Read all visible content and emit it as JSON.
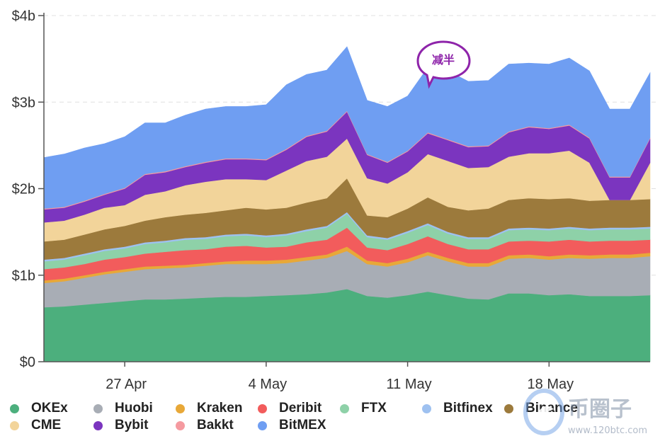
{
  "chart_data": {
    "type": "area",
    "stacked": true,
    "x": [
      "2020-04-23",
      "2020-04-24",
      "2020-04-25",
      "2020-04-26",
      "2020-04-27",
      "2020-04-28",
      "2020-04-29",
      "2020-04-30",
      "2020-05-01",
      "2020-05-02",
      "2020-05-03",
      "2020-05-04",
      "2020-05-05",
      "2020-05-06",
      "2020-05-07",
      "2020-05-08",
      "2020-05-09",
      "2020-05-10",
      "2020-05-11",
      "2020-05-12",
      "2020-05-13",
      "2020-05-14",
      "2020-05-15",
      "2020-05-16",
      "2020-05-17",
      "2020-05-18",
      "2020-05-19",
      "2020-05-20",
      "2020-05-21",
      "2020-05-22",
      "2020-05-23"
    ],
    "x_tick_labels": [
      {
        "date": "2020-04-27",
        "label": "27 Apr"
      },
      {
        "date": "2020-05-04",
        "label": "4 May"
      },
      {
        "date": "2020-05-11",
        "label": "11 May"
      },
      {
        "date": "2020-05-18",
        "label": "18 May"
      }
    ],
    "y_ticks": [
      "$0",
      "$1b",
      "$2b",
      "$3b",
      "$4b"
    ],
    "ylim": [
      0,
      4
    ],
    "y_unit": "billion USD",
    "grid": "horizontal dashed",
    "series": [
      {
        "name": "OKEx",
        "color": "#4caf7d",
        "values": [
          0.63,
          0.64,
          0.66,
          0.68,
          0.7,
          0.72,
          0.72,
          0.73,
          0.74,
          0.75,
          0.75,
          0.76,
          0.77,
          0.78,
          0.8,
          0.84,
          0.76,
          0.74,
          0.77,
          0.81,
          0.77,
          0.73,
          0.72,
          0.79,
          0.79,
          0.77,
          0.78,
          0.76,
          0.76,
          0.76,
          0.77
        ]
      },
      {
        "name": "Huobi",
        "color": "#a8adb5",
        "values": [
          0.28,
          0.29,
          0.31,
          0.33,
          0.34,
          0.35,
          0.36,
          0.36,
          0.37,
          0.38,
          0.38,
          0.37,
          0.37,
          0.39,
          0.4,
          0.44,
          0.37,
          0.36,
          0.38,
          0.42,
          0.39,
          0.37,
          0.38,
          0.4,
          0.41,
          0.41,
          0.42,
          0.43,
          0.44,
          0.44,
          0.45
        ]
      },
      {
        "name": "Kraken",
        "color": "#e8a838",
        "values": [
          0.03,
          0.03,
          0.03,
          0.03,
          0.03,
          0.03,
          0.03,
          0.03,
          0.03,
          0.03,
          0.04,
          0.04,
          0.04,
          0.04,
          0.04,
          0.05,
          0.04,
          0.04,
          0.04,
          0.04,
          0.04,
          0.04,
          0.04,
          0.04,
          0.04,
          0.04,
          0.04,
          0.04,
          0.04,
          0.04,
          0.04
        ]
      },
      {
        "name": "Deribit",
        "color": "#f25c5c",
        "values": [
          0.13,
          0.13,
          0.13,
          0.14,
          0.14,
          0.15,
          0.16,
          0.17,
          0.16,
          0.17,
          0.17,
          0.15,
          0.15,
          0.17,
          0.17,
          0.22,
          0.15,
          0.15,
          0.17,
          0.18,
          0.16,
          0.16,
          0.16,
          0.16,
          0.16,
          0.17,
          0.17,
          0.16,
          0.16,
          0.16,
          0.15
        ]
      },
      {
        "name": "FTX",
        "color": "#8ed1a8",
        "values": [
          0.09,
          0.09,
          0.1,
          0.1,
          0.1,
          0.11,
          0.11,
          0.12,
          0.12,
          0.12,
          0.12,
          0.12,
          0.13,
          0.13,
          0.14,
          0.16,
          0.12,
          0.12,
          0.13,
          0.13,
          0.12,
          0.12,
          0.12,
          0.13,
          0.13,
          0.13,
          0.13,
          0.13,
          0.13,
          0.13,
          0.13
        ]
      },
      {
        "name": "Bitfinex",
        "color": "#9ec1f0",
        "values": [
          0.02,
          0.02,
          0.02,
          0.02,
          0.02,
          0.02,
          0.02,
          0.02,
          0.02,
          0.02,
          0.02,
          0.02,
          0.02,
          0.02,
          0.02,
          0.02,
          0.02,
          0.02,
          0.02,
          0.02,
          0.02,
          0.02,
          0.02,
          0.02,
          0.02,
          0.02,
          0.02,
          0.02,
          0.02,
          0.02,
          0.02
        ]
      },
      {
        "name": "Binance",
        "color": "#9c7a3c",
        "values": [
          0.21,
          0.21,
          0.22,
          0.23,
          0.24,
          0.25,
          0.27,
          0.27,
          0.28,
          0.28,
          0.3,
          0.3,
          0.3,
          0.31,
          0.32,
          0.39,
          0.23,
          0.24,
          0.26,
          0.3,
          0.29,
          0.31,
          0.33,
          0.33,
          0.34,
          0.34,
          0.33,
          0.32,
          0.32,
          0.32,
          0.32
        ]
      },
      {
        "name": "CME",
        "color": "#f2d49a",
        "values": [
          0.22,
          0.22,
          0.23,
          0.25,
          0.24,
          0.3,
          0.3,
          0.34,
          0.36,
          0.36,
          0.33,
          0.34,
          0.43,
          0.48,
          0.48,
          0.46,
          0.43,
          0.39,
          0.42,
          0.5,
          0.53,
          0.49,
          0.48,
          0.5,
          0.52,
          0.53,
          0.55,
          0.44,
          0.0,
          0.0,
          0.42
        ]
      },
      {
        "name": "Bybit",
        "color": "#7b35bf",
        "values": [
          0.15,
          0.15,
          0.15,
          0.15,
          0.19,
          0.23,
          0.22,
          0.21,
          0.22,
          0.23,
          0.23,
          0.23,
          0.24,
          0.28,
          0.29,
          0.31,
          0.27,
          0.24,
          0.24,
          0.24,
          0.24,
          0.24,
          0.24,
          0.28,
          0.3,
          0.28,
          0.29,
          0.28,
          0.26,
          0.26,
          0.28
        ]
      },
      {
        "name": "Bakkt",
        "color": "#f59aa0",
        "values": [
          0.01,
          0.01,
          0.01,
          0.01,
          0.01,
          0.01,
          0.01,
          0.01,
          0.01,
          0.01,
          0.01,
          0.01,
          0.01,
          0.01,
          0.01,
          0.01,
          0.01,
          0.01,
          0.01,
          0.01,
          0.01,
          0.01,
          0.01,
          0.01,
          0.01,
          0.01,
          0.01,
          0.01,
          0.01,
          0.01,
          0.01
        ]
      },
      {
        "name": "BitMEX",
        "color": "#6f9ef2",
        "values": [
          0.59,
          0.61,
          0.61,
          0.58,
          0.59,
          0.59,
          0.56,
          0.59,
          0.61,
          0.6,
          0.6,
          0.63,
          0.74,
          0.71,
          0.7,
          0.74,
          0.62,
          0.64,
          0.63,
          0.75,
          0.79,
          0.75,
          0.75,
          0.78,
          0.73,
          0.74,
          0.77,
          0.77,
          0.78,
          0.78,
          0.75
        ]
      }
    ],
    "annotations": [
      {
        "text": "减半",
        "date": "2020-05-11"
      }
    ]
  },
  "legend": {
    "items": [
      {
        "label": "OKEx",
        "color": "#4caf7d"
      },
      {
        "label": "Huobi",
        "color": "#a8adb5"
      },
      {
        "label": "Kraken",
        "color": "#e8a838"
      },
      {
        "label": "Deribit",
        "color": "#f25c5c"
      },
      {
        "label": "FTX",
        "color": "#8ed1a8"
      },
      {
        "label": "Bitfinex",
        "color": "#9ec1f0"
      },
      {
        "label": "Binance",
        "color": "#9c7a3c"
      },
      {
        "label": "CME",
        "color": "#f2d49a"
      },
      {
        "label": "Bybit",
        "color": "#7b35bf"
      },
      {
        "label": "Bakkt",
        "color": "#f59aa0"
      },
      {
        "label": "BitMEX",
        "color": "#6f9ef2"
      }
    ]
  },
  "watermark": {
    "brand": "币圈子",
    "url": "www.120btc.com"
  }
}
